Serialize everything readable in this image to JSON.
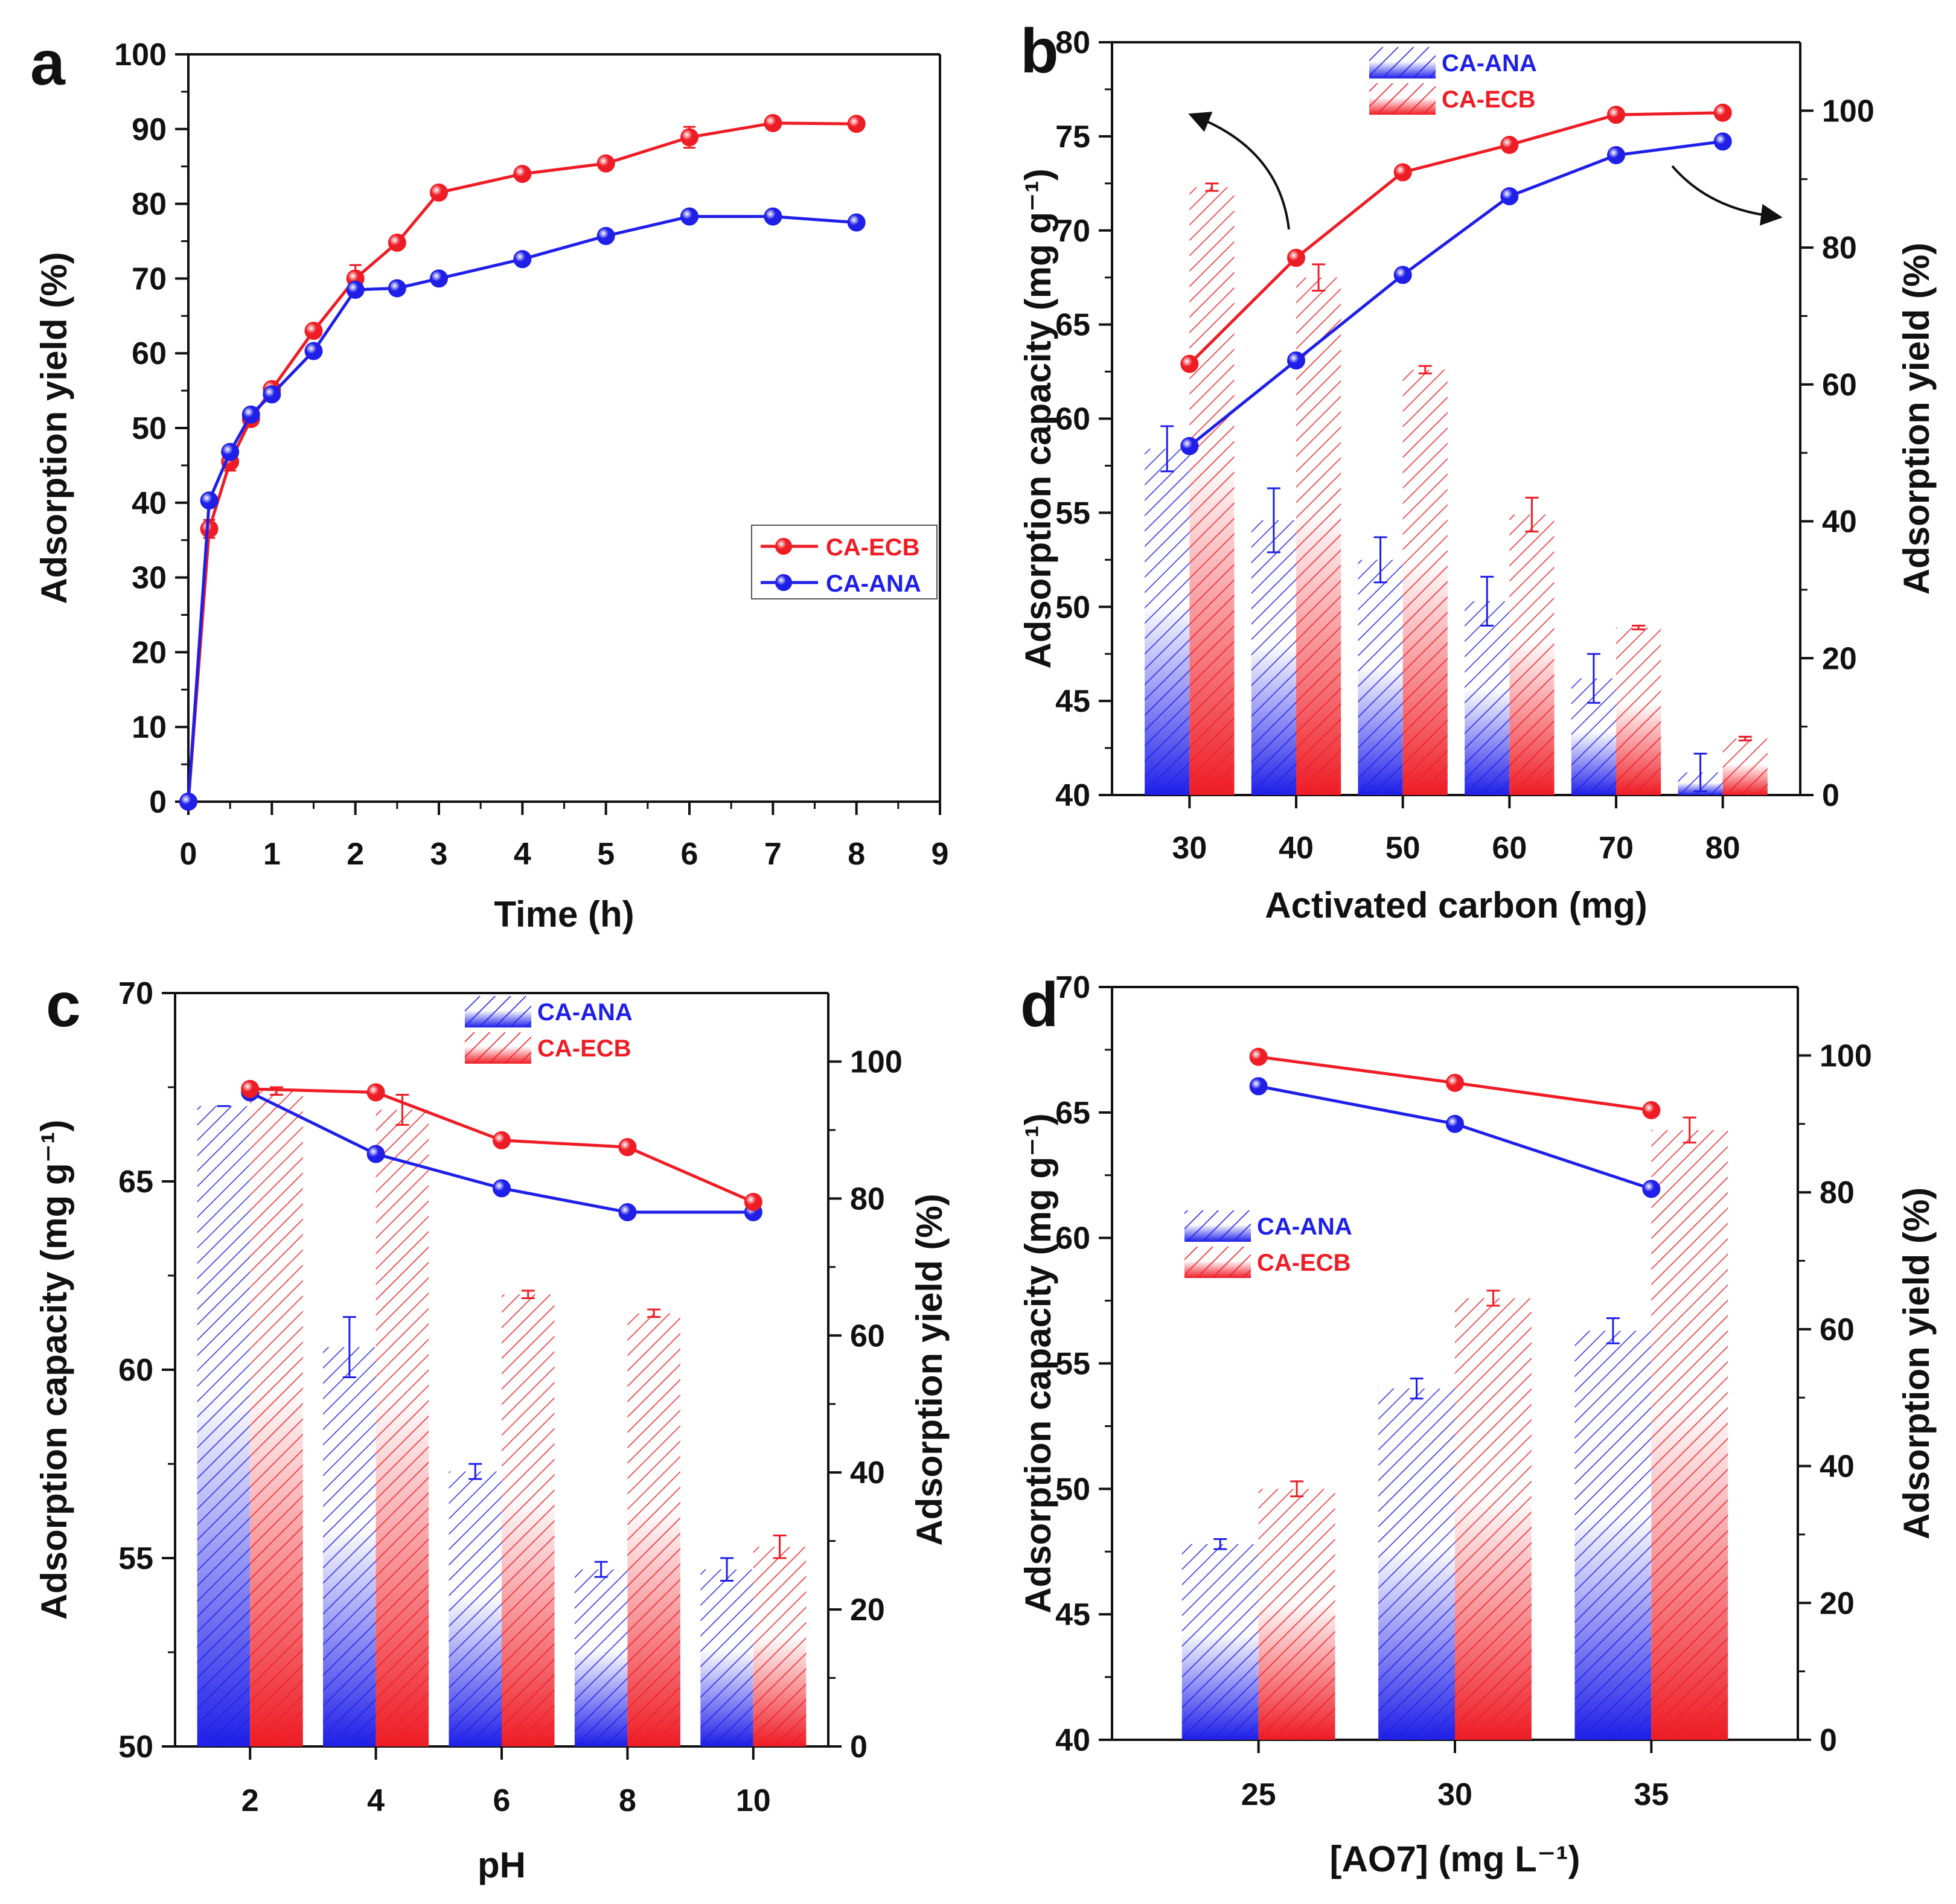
{
  "colors": {
    "ecb": "#ee1c25",
    "ana": "#1f1fe8",
    "axis": "#111111"
  },
  "chart_data": [
    {
      "panel": "a",
      "type": "line",
      "xlabel": "Time (h)",
      "ylabel": "Adsorption yield (%)",
      "xlim": [
        0,
        9
      ],
      "ylim": [
        0,
        100
      ],
      "xticks": [
        0,
        1,
        2,
        3,
        4,
        5,
        6,
        7,
        8,
        9
      ],
      "yticks": [
        0,
        10,
        20,
        30,
        40,
        50,
        60,
        70,
        80,
        90,
        100
      ],
      "legend": "center-right",
      "series": [
        {
          "name": "CA-ECB",
          "color": "ecb",
          "x": [
            0,
            0.25,
            0.5,
            0.75,
            1,
            1.5,
            2,
            2.5,
            3,
            4,
            5,
            6,
            7,
            8
          ],
          "y": [
            0,
            36.5,
            45.5,
            51.2,
            55.2,
            63,
            70,
            74.8,
            81.5,
            84,
            85.4,
            88.9,
            90.8,
            90.7
          ],
          "err": [
            0,
            1.2,
            1.2,
            0.8,
            0.8,
            0.6,
            1.8,
            0.6,
            0.4,
            0.4,
            0.4,
            1.4,
            0.8,
            0.8
          ]
        },
        {
          "name": "CA-ANA",
          "color": "ana",
          "x": [
            0,
            0.25,
            0.5,
            0.75,
            1,
            1.5,
            2,
            2.5,
            3,
            4,
            5,
            6,
            7,
            8
          ],
          "y": [
            0,
            40.3,
            46.8,
            51.8,
            54.5,
            60.3,
            68.5,
            68.7,
            70,
            72.6,
            75.7,
            78.3,
            78.3,
            77.5
          ],
          "err": [
            0,
            0.6,
            0.6,
            0.6,
            0.6,
            0.6,
            0.6,
            0.6,
            0.4,
            0.6,
            0.6,
            0.4,
            0.6,
            0.4
          ]
        }
      ]
    },
    {
      "panel": "b",
      "type": "bar",
      "xlabel": "Activated carbon (mg)",
      "ylabel": "Adsorption capacity (mg g⁻¹)",
      "y2label": "Adsorption yield (%)",
      "categories": [
        "30",
        "40",
        "50",
        "60",
        "70",
        "80"
      ],
      "ylim": [
        40,
        80
      ],
      "yticks": [
        40,
        45,
        50,
        55,
        60,
        65,
        70,
        75,
        80
      ],
      "y2lim": [
        0,
        110
      ],
      "y2ticks": [
        0,
        20,
        40,
        60,
        80,
        100
      ],
      "legend": "top-center",
      "series": [
        {
          "name": "CA-ANA",
          "color": "ana",
          "kind": "bar",
          "axis": "left",
          "values": [
            58.4,
            54.6,
            52.5,
            50.3,
            46.2,
            41.2
          ],
          "err": [
            1.2,
            1.7,
            1.2,
            1.3,
            1.3,
            1.0
          ]
        },
        {
          "name": "CA-ECB",
          "color": "ecb",
          "kind": "bar",
          "axis": "left",
          "values": [
            72.3,
            67.5,
            62.6,
            54.9,
            48.9,
            43.0
          ],
          "err": [
            0.2,
            0.7,
            0.2,
            0.9,
            0.1,
            0.1
          ]
        },
        {
          "name": "CA-ANA",
          "color": "ana",
          "kind": "line",
          "axis": "right",
          "values": [
            51,
            63.5,
            76,
            87.5,
            93.5,
            95.5
          ]
        },
        {
          "name": "CA-ECB",
          "color": "ecb",
          "kind": "line",
          "axis": "right",
          "values": [
            63,
            78.5,
            91,
            95,
            99.4,
            99.7
          ]
        }
      ]
    },
    {
      "panel": "c",
      "type": "bar",
      "xlabel": "pH",
      "ylabel": "Adsorption capacity (mg g⁻¹)",
      "y2label": "Adsorption yield (%)",
      "categories": [
        "2",
        "4",
        "6",
        "8",
        "10"
      ],
      "ylim": [
        50,
        70
      ],
      "yticks": [
        50,
        55,
        60,
        65,
        70
      ],
      "y2lim": [
        0,
        110
      ],
      "y2ticks": [
        0,
        20,
        40,
        60,
        80,
        100
      ],
      "legend": "top-center",
      "series": [
        {
          "name": "CA-ANA",
          "color": "ana",
          "kind": "bar",
          "axis": "left",
          "values": [
            67.0,
            60.6,
            57.3,
            54.7,
            54.7
          ],
          "err": [
            0.0,
            0.8,
            0.2,
            0.2,
            0.3
          ]
        },
        {
          "name": "CA-ECB",
          "color": "ecb",
          "kind": "bar",
          "axis": "left",
          "values": [
            67.4,
            66.9,
            62.0,
            61.5,
            55.3
          ],
          "err": [
            0.1,
            0.4,
            0.1,
            0.1,
            0.3
          ]
        },
        {
          "name": "CA-ANA",
          "color": "ana",
          "kind": "line",
          "axis": "right",
          "values": [
            95.5,
            86.5,
            81.5,
            78,
            78
          ]
        },
        {
          "name": "CA-ECB",
          "color": "ecb",
          "kind": "line",
          "axis": "right",
          "values": [
            96,
            95.5,
            88.5,
            87.5,
            79.5
          ]
        }
      ]
    },
    {
      "panel": "d",
      "type": "bar",
      "xlabel": "[AO7] (mg L⁻¹)",
      "ylabel": "Adsorption capacity (mg g⁻¹)",
      "y2label": "Adsorption yield (%)",
      "categories": [
        "25",
        "30",
        "35"
      ],
      "ylim": [
        40,
        70
      ],
      "yticks": [
        40,
        45,
        50,
        55,
        60,
        65,
        70
      ],
      "y2lim": [
        0,
        110
      ],
      "y2ticks": [
        0,
        20,
        40,
        60,
        80,
        100
      ],
      "legend": "center-left",
      "series": [
        {
          "name": "CA-ANA",
          "color": "ana",
          "kind": "bar",
          "axis": "left",
          "values": [
            47.8,
            54.0,
            56.3
          ],
          "err": [
            0.2,
            0.4,
            0.5
          ]
        },
        {
          "name": "CA-ECB",
          "color": "ecb",
          "kind": "bar",
          "axis": "left",
          "values": [
            50.0,
            57.6,
            64.3
          ],
          "err": [
            0.3,
            0.3,
            0.5
          ]
        },
        {
          "name": "CA-ANA",
          "color": "ana",
          "kind": "line",
          "axis": "right",
          "values": [
            95.5,
            90,
            80.5
          ]
        },
        {
          "name": "CA-ECB",
          "color": "ecb",
          "kind": "line",
          "axis": "right",
          "values": [
            99.8,
            96,
            92
          ]
        }
      ]
    }
  ]
}
